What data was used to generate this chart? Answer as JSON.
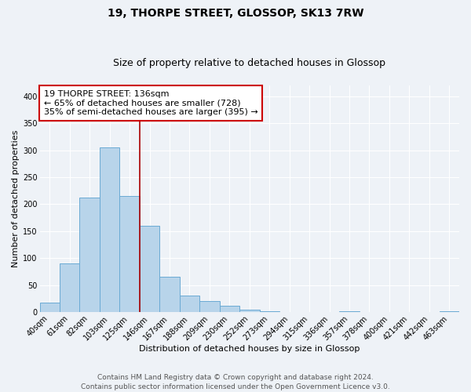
{
  "title": "19, THORPE STREET, GLOSSOP, SK13 7RW",
  "subtitle": "Size of property relative to detached houses in Glossop",
  "xlabel": "Distribution of detached houses by size in Glossop",
  "ylabel": "Number of detached properties",
  "bar_labels": [
    "40sqm",
    "61sqm",
    "82sqm",
    "103sqm",
    "125sqm",
    "146sqm",
    "167sqm",
    "188sqm",
    "209sqm",
    "230sqm",
    "252sqm",
    "273sqm",
    "294sqm",
    "315sqm",
    "336sqm",
    "357sqm",
    "378sqm",
    "400sqm",
    "421sqm",
    "442sqm",
    "463sqm"
  ],
  "bar_values": [
    17,
    90,
    212,
    305,
    215,
    160,
    65,
    30,
    20,
    11,
    5,
    2,
    0,
    0,
    0,
    2,
    0,
    0,
    0,
    0,
    2
  ],
  "bar_color": "#b8d4ea",
  "bar_edge_color": "#6aaad4",
  "vline_color": "#aa0000",
  "annotation_text": "19 THORPE STREET: 136sqm\n← 65% of detached houses are smaller (728)\n35% of semi-detached houses are larger (395) →",
  "annotation_box_color": "#ffffff",
  "annotation_box_edge": "#cc0000",
  "ylim": [
    0,
    420
  ],
  "yticks": [
    0,
    50,
    100,
    150,
    200,
    250,
    300,
    350,
    400
  ],
  "footer_text": "Contains HM Land Registry data © Crown copyright and database right 2024.\nContains public sector information licensed under the Open Government Licence v3.0.",
  "background_color": "#eef2f7",
  "grid_color": "#ffffff",
  "title_fontsize": 10,
  "subtitle_fontsize": 9,
  "axis_label_fontsize": 8,
  "tick_fontsize": 7,
  "annotation_fontsize": 8,
  "footer_fontsize": 6.5
}
